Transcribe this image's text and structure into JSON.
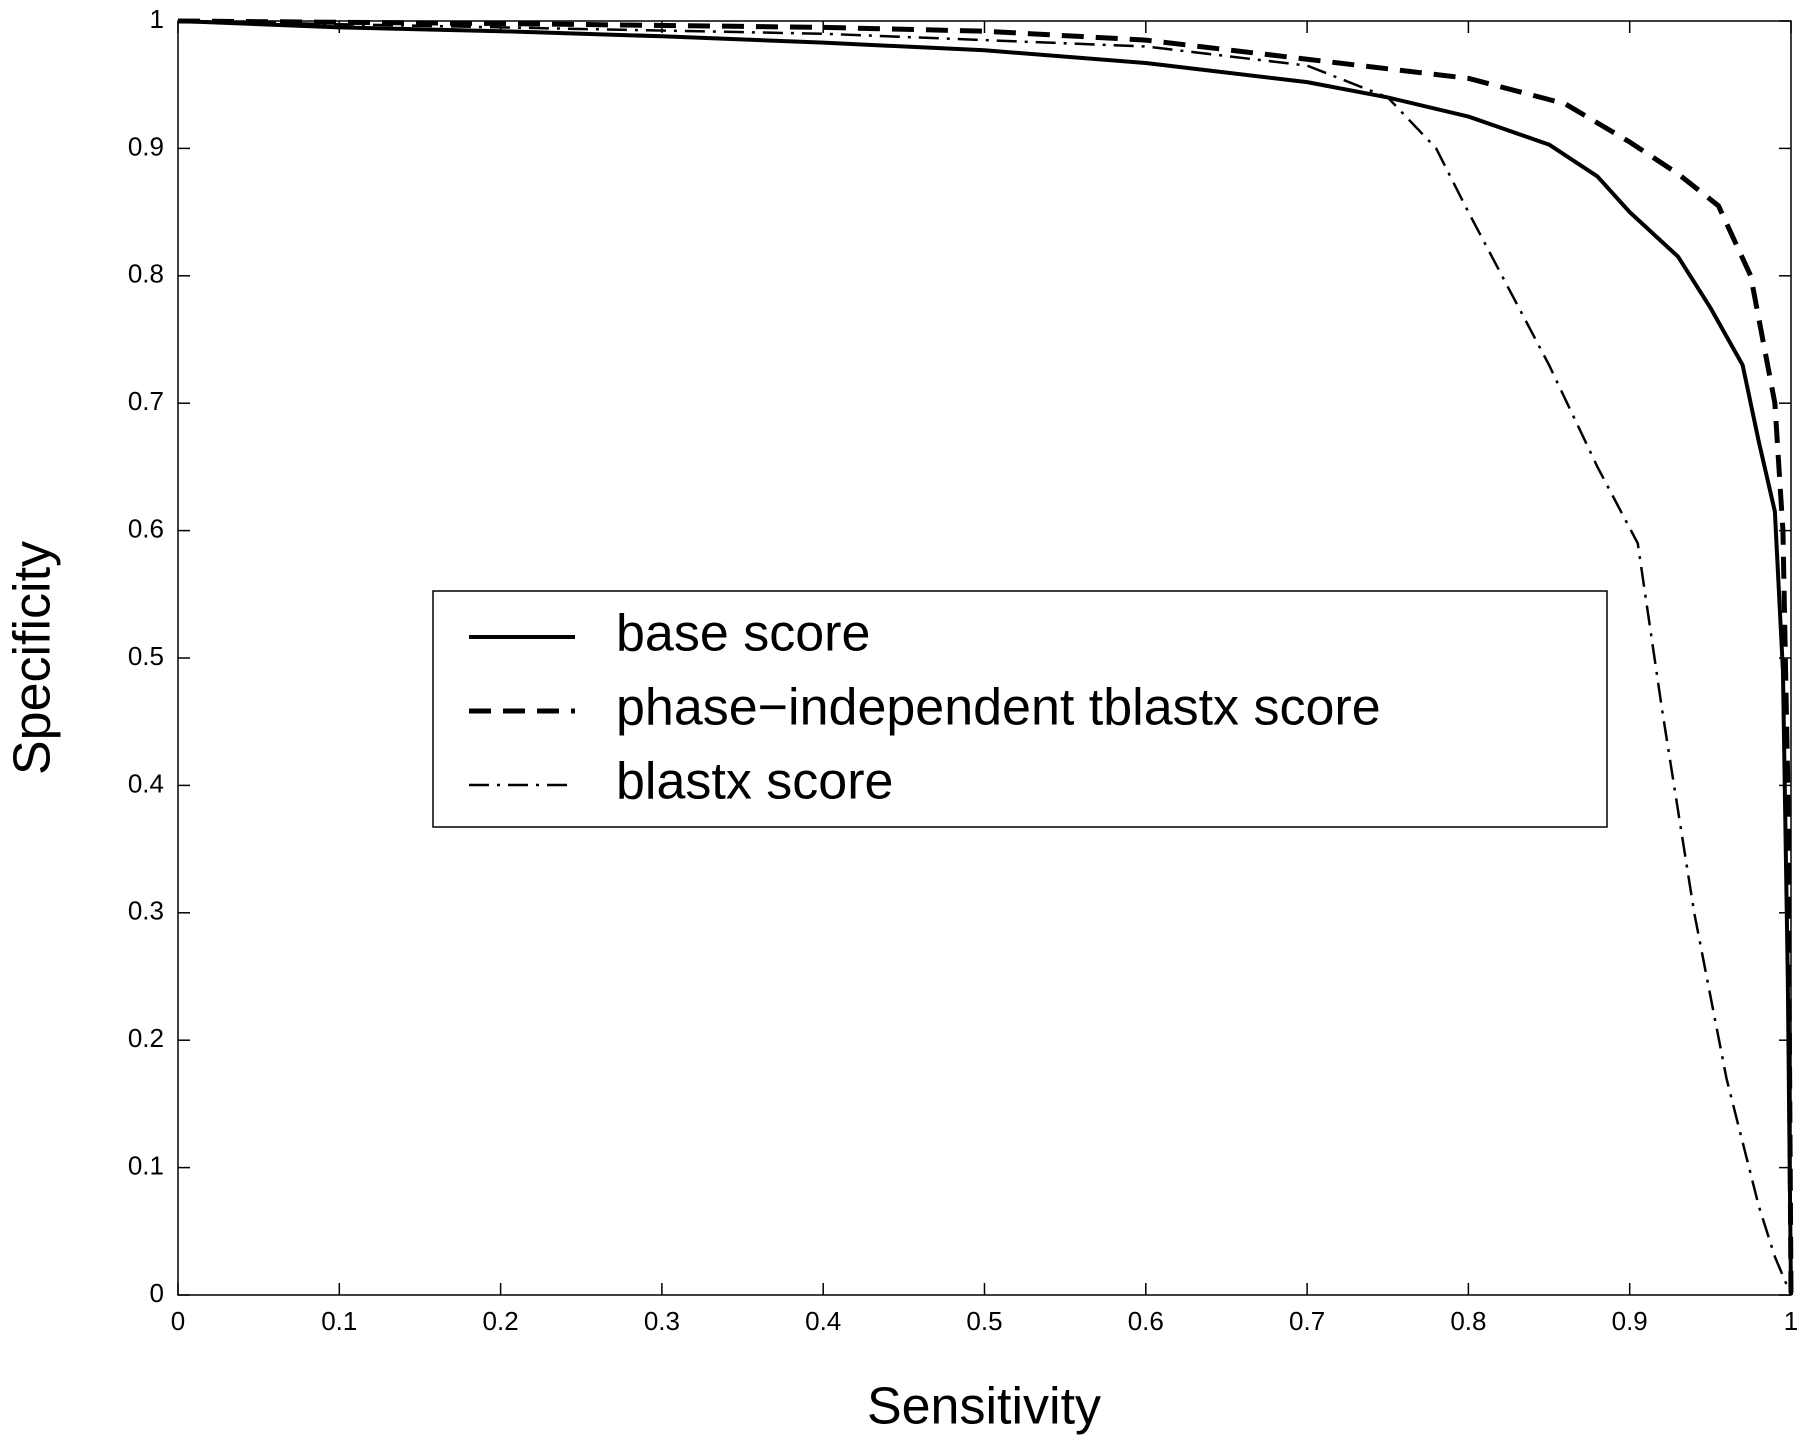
{
  "chart_data": {
    "type": "line",
    "x_label": "Sensitivity",
    "y_label": "Specificity",
    "xlim": [
      0,
      1
    ],
    "ylim": [
      0,
      1
    ],
    "xticks": [
      0,
      0.1,
      0.2,
      0.3,
      0.4,
      0.5,
      0.6,
      0.7,
      0.8,
      0.9,
      1
    ],
    "yticks": [
      0,
      0.1,
      0.2,
      0.3,
      0.4,
      0.5,
      0.6,
      0.7,
      0.8,
      0.9,
      1
    ],
    "grid": false,
    "legend_position": "center",
    "series": [
      {
        "name": "base score",
        "color": "#000000",
        "style": "solid",
        "x": [
          0,
          0.1,
          0.2,
          0.3,
          0.4,
          0.5,
          0.6,
          0.7,
          0.75,
          0.8,
          0.85,
          0.88,
          0.9,
          0.93,
          0.95,
          0.97,
          0.98,
          0.99,
          0.995,
          0.998,
          1
        ],
        "values": [
          1,
          0.995,
          0.992,
          0.988,
          0.983,
          0.977,
          0.967,
          0.952,
          0.94,
          0.925,
          0.903,
          0.878,
          0.85,
          0.815,
          0.775,
          0.73,
          0.67,
          0.615,
          0.49,
          0.25,
          0
        ]
      },
      {
        "name": "phase−independent tblastx score",
        "color": "#000000",
        "style": "dashed",
        "x": [
          0,
          0.2,
          0.4,
          0.5,
          0.6,
          0.7,
          0.8,
          0.86,
          0.9,
          0.93,
          0.955,
          0.975,
          0.99,
          0.995,
          0.998,
          1
        ],
        "values": [
          1,
          0.998,
          0.995,
          0.992,
          0.985,
          0.97,
          0.955,
          0.935,
          0.905,
          0.88,
          0.855,
          0.8,
          0.7,
          0.6,
          0.4,
          0
        ]
      },
      {
        "name": "blastx score",
        "color": "#000000",
        "style": "dashdot",
        "x": [
          0,
          0.2,
          0.4,
          0.6,
          0.7,
          0.75,
          0.78,
          0.8,
          0.85,
          0.88,
          0.905,
          0.92,
          0.94,
          0.96,
          0.98,
          0.99,
          1
        ],
        "values": [
          1,
          0.995,
          0.99,
          0.98,
          0.965,
          0.94,
          0.9,
          0.85,
          0.73,
          0.65,
          0.59,
          0.46,
          0.3,
          0.17,
          0.07,
          0.03,
          0
        ]
      }
    ]
  }
}
